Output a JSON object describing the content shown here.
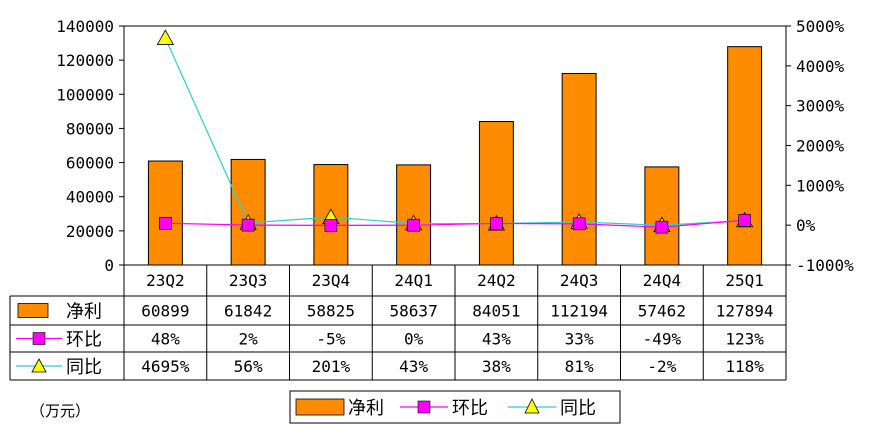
{
  "chart_data": {
    "type": "bar",
    "categories": [
      "23Q2",
      "23Q3",
      "23Q4",
      "24Q1",
      "24Q2",
      "24Q3",
      "24Q4",
      "25Q1"
    ],
    "series": [
      {
        "name": "净利",
        "type": "bar",
        "axis": "left",
        "color": "#FF8C00",
        "values": [
          60899,
          61842,
          58825,
          58637,
          84051,
          112194,
          57462,
          127894
        ],
        "labels": [
          "60899",
          "61842",
          "58825",
          "58637",
          "84051",
          "112194",
          "57462",
          "127894"
        ]
      },
      {
        "name": "环比",
        "type": "line",
        "axis": "right",
        "color": "#FF00FF",
        "marker": "square",
        "values": [
          48,
          2,
          -5,
          0,
          43,
          33,
          -49,
          123
        ],
        "labels": [
          "48%",
          "2%",
          "-5%",
          "0%",
          "43%",
          "33%",
          "-49%",
          "123%"
        ]
      },
      {
        "name": "同比",
        "type": "line",
        "axis": "right",
        "color": "#33CCCC",
        "marker": "triangle",
        "marker_fill": "#FFFF00",
        "values": [
          4695,
          56,
          201,
          43,
          38,
          81,
          -2,
          118
        ],
        "labels": [
          "4695%",
          "56%",
          "201%",
          "43%",
          "38%",
          "81%",
          "-2%",
          "118%"
        ]
      }
    ],
    "y_left": {
      "ylim": [
        0,
        140000
      ],
      "ticks": [
        "0",
        "20000",
        "40000",
        "60000",
        "80000",
        "100000",
        "120000",
        "140000"
      ]
    },
    "y_right": {
      "ylim": [
        -1000,
        5000
      ],
      "ticks": [
        "-1000%",
        "0%",
        "1000%",
        "2000%",
        "3000%",
        "4000%",
        "5000%"
      ]
    },
    "unit": "（万元）",
    "legend_position": "bottom",
    "data_table": true,
    "grid": false
  }
}
